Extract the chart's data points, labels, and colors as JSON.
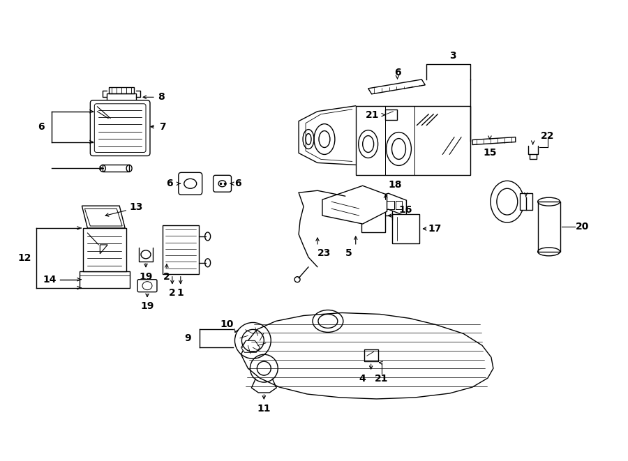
{
  "bg_color": "#ffffff",
  "lc": "#000000",
  "lw": 1.0,
  "fontsize": 10,
  "fig_w": 9.0,
  "fig_h": 6.61,
  "xlim": [
    0,
    9.0
  ],
  "ylim": [
    0,
    6.61
  ]
}
